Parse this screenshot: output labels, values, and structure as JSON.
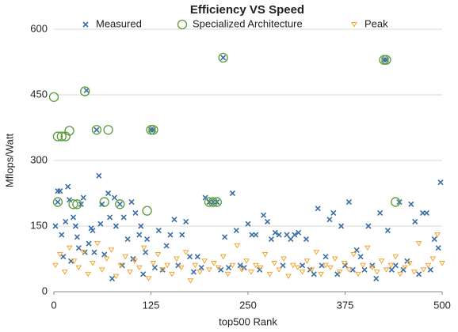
{
  "chart_data": {
    "type": "scatter",
    "title": "Efficiency VS Speed",
    "xlabel": "top500 Rank",
    "ylabel": "Mflops/Watt",
    "xlim": [
      0,
      500
    ],
    "xticks": [
      0,
      125,
      250,
      375,
      500
    ],
    "ylim": [
      0,
      600
    ],
    "yticks": [
      0,
      150,
      300,
      450,
      600
    ],
    "grid": true,
    "series": [
      {
        "name": "Measured",
        "color": "#3b6ea5",
        "marker": "x",
        "x": [
          2,
          5,
          8,
          5,
          10,
          12,
          15,
          18,
          20,
          22,
          25,
          28,
          30,
          32,
          35,
          38,
          40,
          42,
          45,
          48,
          50,
          52,
          55,
          58,
          60,
          62,
          65,
          70,
          72,
          75,
          78,
          80,
          85,
          88,
          90,
          95,
          100,
          102,
          105,
          110,
          112,
          115,
          118,
          120,
          125,
          128,
          130,
          135,
          140,
          145,
          150,
          155,
          160,
          165,
          170,
          175,
          180,
          185,
          190,
          195,
          200,
          205,
          210,
          215,
          218,
          220,
          225,
          230,
          235,
          240,
          245,
          250,
          255,
          260,
          265,
          270,
          275,
          280,
          285,
          290,
          295,
          300,
          305,
          310,
          315,
          320,
          325,
          330,
          335,
          340,
          345,
          350,
          355,
          360,
          365,
          370,
          375,
          380,
          385,
          390,
          395,
          400,
          405,
          410,
          415,
          420,
          425,
          428,
          430,
          435,
          440,
          445,
          450,
          455,
          460,
          465,
          470,
          475,
          480,
          485,
          490,
          495,
          498
        ],
        "values": [
          150,
          230,
          230,
          205,
          130,
          80,
          160,
          240,
          210,
          70,
          170,
          150,
          125,
          100,
          200,
          215,
          90,
          460,
          110,
          145,
          140,
          90,
          370,
          265,
          155,
          200,
          85,
          225,
          170,
          30,
          215,
          150,
          200,
          60,
          170,
          120,
          205,
          75,
          180,
          130,
          150,
          40,
          90,
          120,
          370,
          370,
          55,
          140,
          50,
          105,
          130,
          165,
          60,
          130,
          160,
          80,
          45,
          80,
          55,
          215,
          205,
          205,
          205,
          50,
          535,
          125,
          55,
          225,
          140,
          60,
          55,
          155,
          130,
          130,
          50,
          175,
          160,
          120,
          135,
          130,
          60,
          130,
          120,
          130,
          135,
          60,
          120,
          50,
          40,
          190,
          60,
          80,
          165,
          180,
          40,
          150,
          60,
          205,
          50,
          95,
          80,
          50,
          150,
          60,
          30,
          180,
          530,
          530,
          140,
          50,
          60,
          205,
          50,
          70,
          200,
          160,
          40,
          180,
          180,
          50,
          120,
          100,
          250
        ]
      },
      {
        "name": "Specialized Architecture",
        "color": "#5a9a3a",
        "marker": "circle",
        "x": [
          0,
          5,
          10,
          15,
          20,
          25,
          30,
          40,
          55,
          70,
          5,
          65,
          85,
          120,
          125,
          128,
          200,
          205,
          210,
          218,
          425,
          428,
          440
        ],
        "values": [
          445,
          355,
          355,
          355,
          368,
          200,
          200,
          458,
          370,
          370,
          205,
          205,
          200,
          185,
          370,
          370,
          205,
          205,
          205,
          535,
          530,
          530,
          205
        ]
      },
      {
        "name": "Peak",
        "color": "#f0a530",
        "marker": "triangle",
        "x": [
          2,
          8,
          14,
          20,
          26,
          32,
          38,
          44,
          50,
          56,
          62,
          68,
          74,
          80,
          86,
          92,
          98,
          104,
          110,
          116,
          122,
          128,
          134,
          140,
          146,
          152,
          158,
          164,
          170,
          176,
          182,
          188,
          194,
          200,
          206,
          212,
          218,
          224,
          230,
          236,
          242,
          248,
          254,
          260,
          266,
          272,
          278,
          284,
          290,
          296,
          302,
          308,
          314,
          320,
          326,
          332,
          338,
          344,
          350,
          356,
          362,
          368,
          374,
          380,
          386,
          392,
          398,
          404,
          410,
          416,
          422,
          428,
          434,
          440,
          446,
          452,
          458,
          464,
          470,
          476,
          482,
          488,
          494,
          500
        ],
        "values": [
          60,
          85,
          45,
          100,
          70,
          55,
          90,
          40,
          65,
          110,
          50,
          75,
          95,
          35,
          60,
          80,
          45,
          70,
          55,
          100,
          30,
          65,
          85,
          50,
          60,
          40,
          75,
          55,
          90,
          25,
          60,
          45,
          70,
          50,
          65,
          55,
          80,
          40,
          60,
          105,
          50,
          70,
          45,
          60,
          55,
          85,
          40,
          65,
          50,
          75,
          35,
          60,
          55,
          45,
          70,
          50,
          90,
          40,
          60,
          55,
          75,
          45,
          65,
          50,
          85,
          40,
          60,
          100,
          55,
          45,
          70,
          50,
          60,
          80,
          40,
          55,
          65,
          45,
          110,
          50,
          60,
          75,
          130,
          65
        ]
      }
    ]
  }
}
